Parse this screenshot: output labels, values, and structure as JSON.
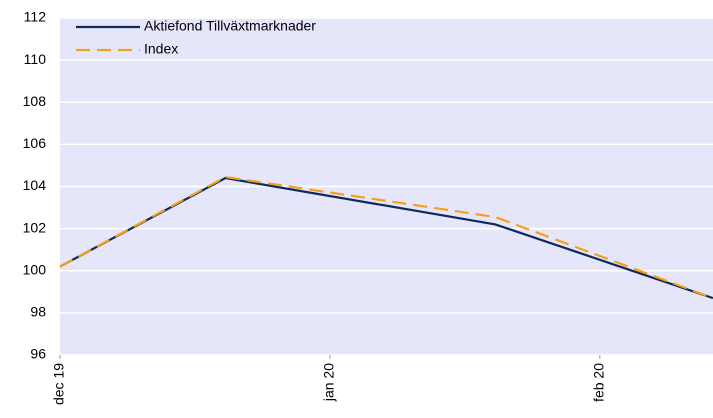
{
  "chart_data": {
    "type": "line",
    "x": [
      0,
      19,
      50,
      75
    ],
    "xlim": [
      0,
      75
    ],
    "xticks": [
      {
        "value": 0,
        "label": "dec 19"
      },
      {
        "value": 31,
        "label": "jan 20"
      },
      {
        "value": 62,
        "label": "feb 20"
      }
    ],
    "ylim": [
      96,
      112
    ],
    "yticks": [
      96,
      98,
      100,
      102,
      104,
      106,
      108,
      110,
      112
    ],
    "grid": true,
    "legend": "top-left",
    "series": [
      {
        "name": "Aktiefond Tillväxtmarknader",
        "color": "#0d2a5c",
        "dash": false,
        "values": [
          100.2,
          104.4,
          102.2,
          98.7
        ]
      },
      {
        "name": "Index",
        "color": "#f5a01a",
        "dash": true,
        "values": [
          100.2,
          104.45,
          102.55,
          98.7
        ]
      }
    ]
  }
}
